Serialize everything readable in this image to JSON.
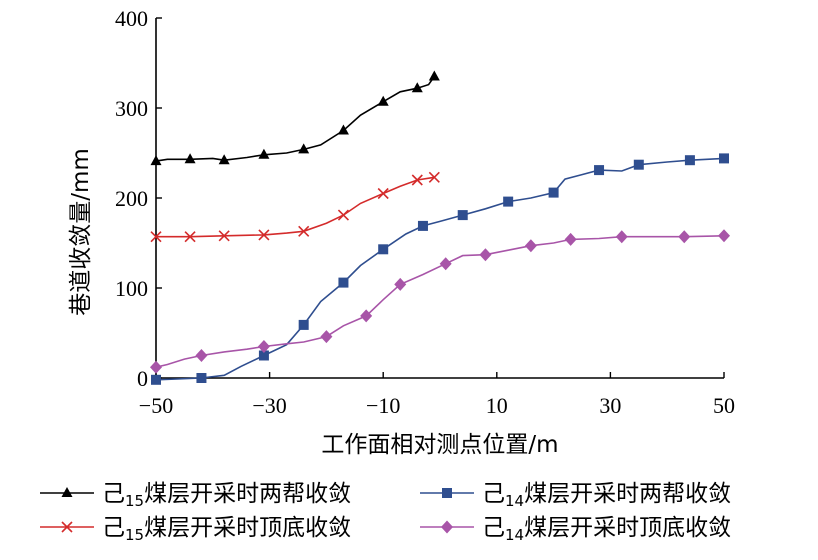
{
  "chart_data": {
    "type": "line",
    "xlabel": "工作面相对测点位置/m",
    "ylabel": "巷道收敛量/mm",
    "xlim": [
      -50,
      50
    ],
    "ylim": [
      0,
      400
    ],
    "xticks": [
      -50,
      -30,
      -10,
      10,
      30,
      50
    ],
    "yticks": [
      0,
      100,
      200,
      300,
      400
    ],
    "xtick_labels": [
      "−50",
      "−30",
      "−10",
      "10",
      "30",
      "50"
    ],
    "ytick_labels": [
      "0",
      "100",
      "200",
      "300",
      "400"
    ],
    "grid": false,
    "legend_position": "bottom",
    "series": [
      {
        "name": "己15煤层开采时两帮收敛",
        "name_parts": [
          "己",
          "15",
          "煤层开采时两帮收敛"
        ],
        "color": "#000000",
        "marker": "triangle",
        "x": [
          -50,
          -48,
          -44,
          -40,
          -38,
          -34,
          -31,
          -27,
          -24,
          -21,
          -17,
          -14,
          -10,
          -7,
          -4,
          -2,
          -1
        ],
        "y": [
          241,
          243,
          243,
          244,
          242,
          245,
          248,
          250,
          254,
          259,
          275,
          292,
          307,
          318,
          322,
          326,
          335
        ],
        "marked": [
          0,
          2,
          4,
          6,
          8,
          10,
          12,
          14,
          16
        ]
      },
      {
        "name": "己15煤层开采时顶底收敛",
        "name_parts": [
          "己",
          "15",
          "煤层开采时顶底收敛"
        ],
        "color": "#d42b2b",
        "marker": "x",
        "x": [
          -50,
          -44,
          -38,
          -31,
          -27,
          -24,
          -20,
          -17,
          -14,
          -10,
          -7,
          -4,
          -1
        ],
        "y": [
          157,
          157,
          158,
          159,
          161,
          163,
          172,
          181,
          194,
          205,
          213,
          220,
          223
        ],
        "marked": [
          0,
          1,
          2,
          3,
          5,
          7,
          9,
          11,
          12
        ]
      },
      {
        "name": "己14煤层开采时两帮收敛",
        "name_parts": [
          "己",
          "14",
          "煤层开采时两帮收敛"
        ],
        "color": "#2f4e8f",
        "marker": "square",
        "x": [
          -50,
          -42,
          -38,
          -35,
          -31,
          -27,
          -24,
          -21,
          -17,
          -14,
          -10,
          -6,
          -3,
          0,
          4,
          8,
          12,
          16,
          20,
          22,
          25,
          28,
          32,
          35,
          40,
          44,
          50
        ],
        "y": [
          -2,
          0,
          3,
          13,
          25,
          37,
          59,
          85,
          106,
          125,
          143,
          160,
          169,
          174,
          181,
          188,
          196,
          200,
          206,
          221,
          226,
          231,
          230,
          237,
          240,
          242,
          244
        ],
        "marked": [
          0,
          1,
          4,
          6,
          8,
          10,
          12,
          14,
          16,
          18,
          21,
          23,
          25,
          26
        ]
      },
      {
        "name": "己14煤层开采时顶底收敛",
        "name_parts": [
          "己",
          "14",
          "煤层开采时顶底收敛"
        ],
        "color": "#a855a8",
        "marker": "diamond",
        "x": [
          -50,
          -48,
          -45,
          -42,
          -38,
          -34,
          -31,
          -27,
          -24,
          -20,
          -17,
          -13,
          -10,
          -7,
          -3,
          1,
          4,
          8,
          12,
          16,
          20,
          23,
          28,
          32,
          38,
          43,
          50
        ],
        "y": [
          12,
          15,
          21,
          25,
          29,
          32,
          35,
          38,
          40,
          46,
          58,
          69,
          87,
          104,
          115,
          127,
          136,
          137,
          142,
          147,
          150,
          154,
          155,
          157,
          157,
          157,
          158
        ],
        "marked": [
          0,
          3,
          6,
          9,
          11,
          13,
          15,
          17,
          19,
          21,
          23,
          25,
          26
        ]
      }
    ]
  }
}
